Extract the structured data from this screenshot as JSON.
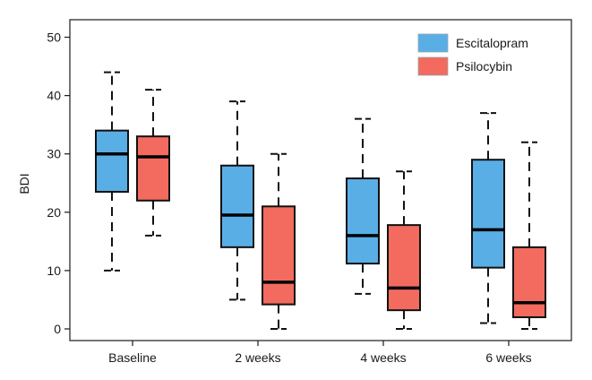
{
  "chart_data": {
    "type": "box",
    "title": "",
    "xlabel": "",
    "ylabel": "BDI",
    "ylim": [
      -2,
      53
    ],
    "yticks": [
      0,
      10,
      20,
      30,
      40,
      50
    ],
    "grid": false,
    "legend_position": "top-right",
    "categories": [
      "Baseline",
      "2 weeks",
      "4 weeks",
      "6 weeks"
    ],
    "series": [
      {
        "name": "Escitalopram",
        "color": "#5aaee6",
        "boxes": [
          {
            "min": 10,
            "q1": 23.5,
            "median": 30,
            "q3": 34,
            "max": 44
          },
          {
            "min": 5,
            "q1": 14,
            "median": 19.5,
            "q3": 28,
            "max": 39
          },
          {
            "min": 6,
            "q1": 11.2,
            "median": 16,
            "q3": 25.8,
            "max": 36
          },
          {
            "min": 1,
            "q1": 10.5,
            "median": 17,
            "q3": 29,
            "max": 37
          }
        ]
      },
      {
        "name": "Psilocybin",
        "color": "#f26b5e",
        "boxes": [
          {
            "min": 16,
            "q1": 22,
            "median": 29.5,
            "q3": 33,
            "max": 41
          },
          {
            "min": 0,
            "q1": 4.2,
            "median": 8,
            "q3": 21,
            "max": 30
          },
          {
            "min": 0,
            "q1": 3.2,
            "median": 7,
            "q3": 17.8,
            "max": 27
          },
          {
            "min": 0,
            "q1": 2,
            "median": 4.5,
            "q3": 14,
            "max": 32
          }
        ]
      }
    ]
  }
}
